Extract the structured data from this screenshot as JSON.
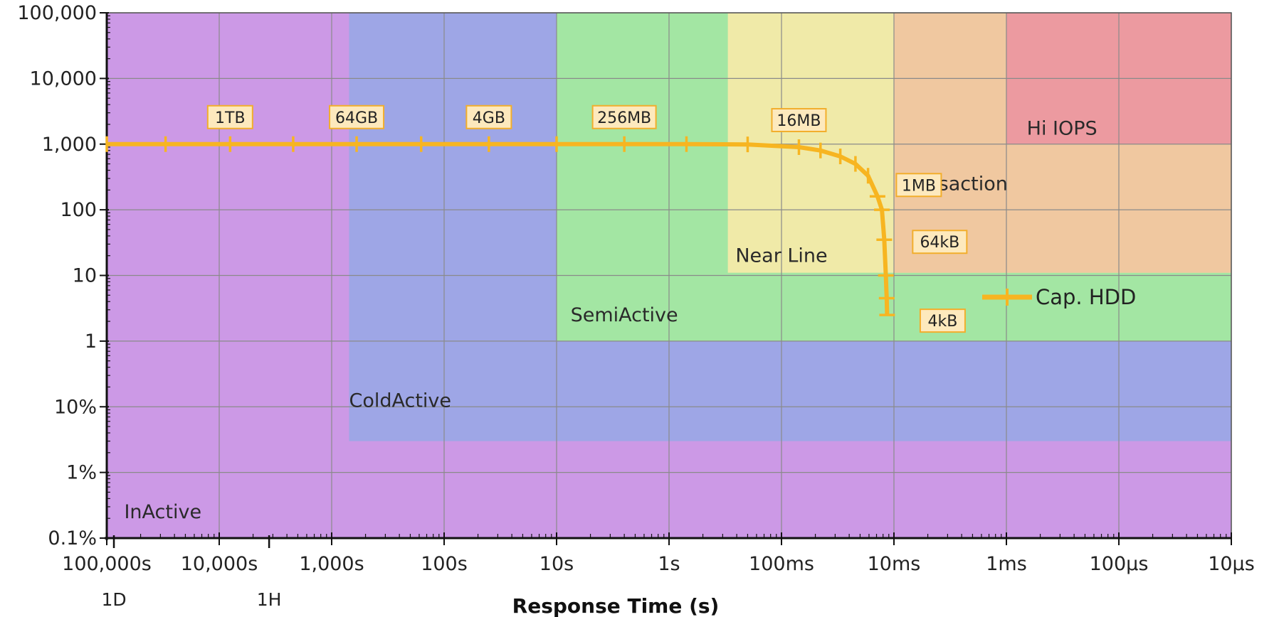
{
  "chart_data": {
    "type": "line",
    "xlabel": "Response Time (s)",
    "ylabel": "",
    "x_scale": "log",
    "x_reversed": true,
    "xlim": [
      100000,
      1e-05
    ],
    "y_scale": "log",
    "ylim": [
      0.001,
      100000
    ],
    "x_ticks": [
      {
        "value": 100000,
        "label": "100,000s"
      },
      {
        "value": 10000,
        "label": "10,000s"
      },
      {
        "value": 1000,
        "label": "1,000s"
      },
      {
        "value": 100,
        "label": "100s"
      },
      {
        "value": 10,
        "label": "10s"
      },
      {
        "value": 1,
        "label": "1s"
      },
      {
        "value": 0.1,
        "label": "100ms"
      },
      {
        "value": 0.01,
        "label": "10ms"
      },
      {
        "value": 0.001,
        "label": "1ms"
      },
      {
        "value": 0.0001,
        "label": "100µs"
      },
      {
        "value": 1e-05,
        "label": "10µs"
      }
    ],
    "x_sub_ticks": [
      {
        "value": 86400,
        "label": "1D"
      },
      {
        "value": 3600,
        "label": "1H"
      }
    ],
    "y_ticks": [
      {
        "value": 100000,
        "label": "100,000"
      },
      {
        "value": 10000,
        "label": "10,000"
      },
      {
        "value": 1000,
        "label": "1,000"
      },
      {
        "value": 100,
        "label": "100"
      },
      {
        "value": 10,
        "label": "10"
      },
      {
        "value": 1,
        "label": "1"
      },
      {
        "value": 0.1,
        "label": "10%"
      },
      {
        "value": 0.01,
        "label": "1%"
      },
      {
        "value": 0.001,
        "label": "0.1%"
      }
    ],
    "grid": true,
    "regions": [
      {
        "label": "InActive",
        "x_range": [
          100000,
          1e-05
        ],
        "y_range": [
          0.001,
          100000
        ],
        "color": "#cc99e6"
      },
      {
        "label": "ColdActive",
        "x_range": [
          700,
          1e-05
        ],
        "y_range": [
          0.03,
          100000
        ],
        "color": "#9ea6e6"
      },
      {
        "label": "SemiActive",
        "x_range": [
          10,
          1e-05
        ],
        "y_range": [
          1,
          100000
        ],
        "color": "#a3e6a3"
      },
      {
        "label": "Near Line",
        "x_range": [
          0.3,
          1e-05
        ],
        "y_range": [
          11,
          100000
        ],
        "color": "#f0eaa8"
      },
      {
        "label": "Transaction",
        "x_range": [
          0.01,
          1e-05
        ],
        "y_range": [
          11,
          100000
        ],
        "color": "#f0c8a0"
      },
      {
        "label": "Hi IOPS",
        "x_range": [
          0.001,
          1e-05
        ],
        "y_range": [
          1000,
          100000
        ],
        "color": "#ec9aa0"
      }
    ],
    "series": [
      {
        "name": "Cap. HDD",
        "color": "#f7b521",
        "x": [
          100000,
          30000,
          8000,
          2200,
          600,
          160,
          40,
          10,
          2.5,
          0.7,
          0.2,
          0.07,
          0.045,
          0.03,
          0.022,
          0.017,
          0.014,
          0.0128,
          0.0122,
          0.0118,
          0.0116,
          0.0115
        ],
        "y": [
          1000,
          1000,
          1000,
          1000,
          1000,
          1000,
          1000,
          1000,
          1000,
          1000,
          990,
          900,
          800,
          650,
          500,
          330,
          160,
          100,
          35,
          10,
          4.5,
          2.5
        ]
      }
    ],
    "annotations": [
      {
        "text": "1TB",
        "x": 8000,
        "y": 1000
      },
      {
        "text": "64GB",
        "x": 600,
        "y": 1000
      },
      {
        "text": "4GB",
        "x": 40,
        "y": 1000
      },
      {
        "text": "256MB",
        "x": 2.5,
        "y": 1000
      },
      {
        "text": "16MB",
        "x": 0.07,
        "y": 900
      },
      {
        "text": "1MB",
        "x": 0.014,
        "y": 160
      },
      {
        "text": "64kB",
        "x": 0.0122,
        "y": 35
      },
      {
        "text": "4kB",
        "x": 0.0115,
        "y": 2.5
      }
    ],
    "legend": {
      "label": "Cap. HDD",
      "position": "right"
    }
  }
}
